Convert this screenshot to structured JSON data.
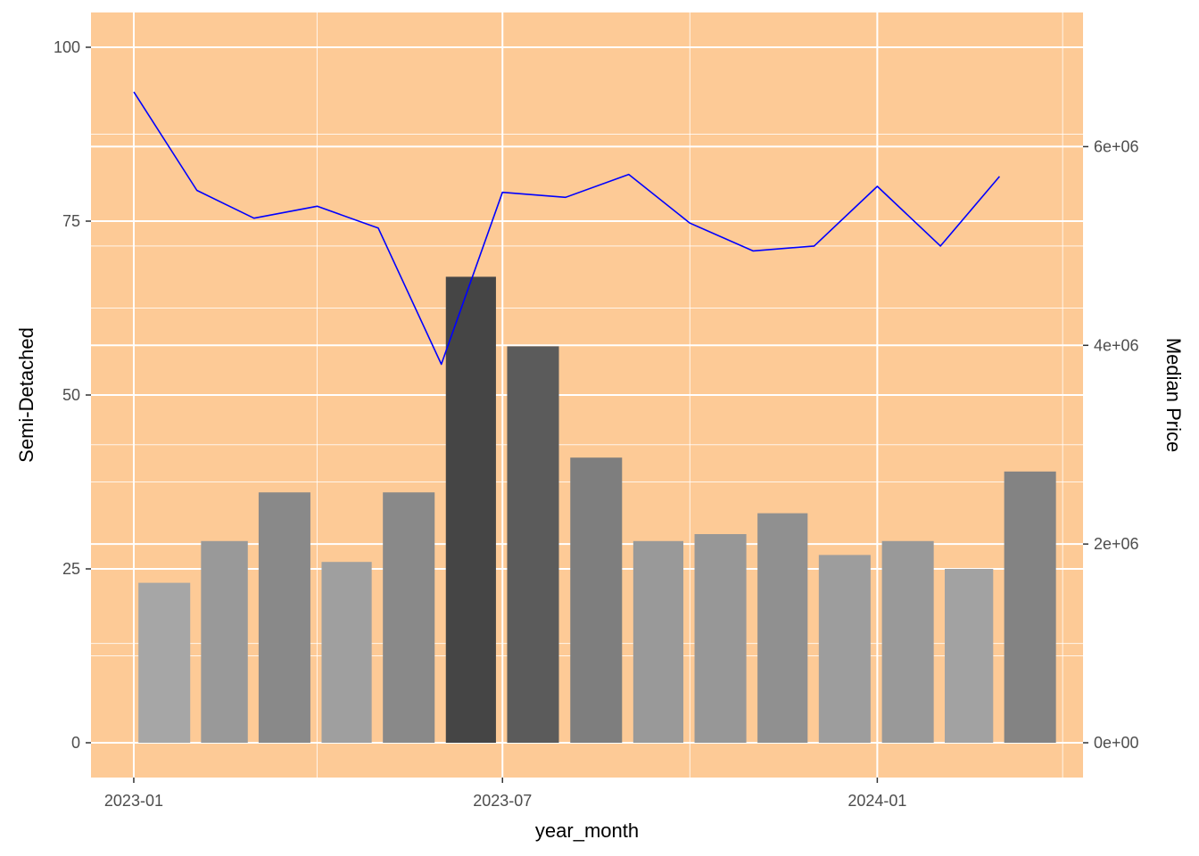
{
  "chart_data": {
    "type": "bar",
    "xlabel": "year_month",
    "ylabel": "Semi-Detached",
    "y2label": "Median Price",
    "x_ticks": [
      "2023-01",
      "2023-07",
      "2024-01"
    ],
    "y_ticks": [
      "0",
      "25",
      "50",
      "75",
      "100"
    ],
    "y2_ticks": [
      "0e+00",
      "2e+06",
      "4e+06",
      "6e+06"
    ],
    "ylim": [
      -5,
      105
    ],
    "y2lim": [
      -350000,
      7350000
    ],
    "xlim": [
      "2022-12-11",
      "2024-04-11"
    ],
    "grid": true,
    "colors": {
      "panel_background": "#fdca96",
      "grid": "#ffffff",
      "line": "#0000ff",
      "bar_light": "#a6a6a6",
      "bar_dark": "#454545"
    },
    "categories": [
      "2023-01",
      "2023-02",
      "2023-03",
      "2023-04",
      "2023-05",
      "2023-06",
      "2023-07",
      "2023-08",
      "2023-09",
      "2023-10",
      "2023-11",
      "2023-12",
      "2024-01",
      "2024-02",
      "2024-03"
    ],
    "series": [
      {
        "type": "bar",
        "axis": "left",
        "values": [
          23,
          29,
          36,
          26,
          36,
          67,
          57,
          41,
          29,
          30,
          33,
          27,
          29,
          25,
          39
        ]
      },
      {
        "type": "line",
        "axis": "right",
        "values": [
          6550000,
          5560000,
          5280000,
          5400000,
          5180000,
          3810000,
          5540000,
          5490000,
          5720000,
          5230000,
          4950000,
          5000000,
          5600000,
          5000000,
          5700000
        ]
      }
    ]
  }
}
